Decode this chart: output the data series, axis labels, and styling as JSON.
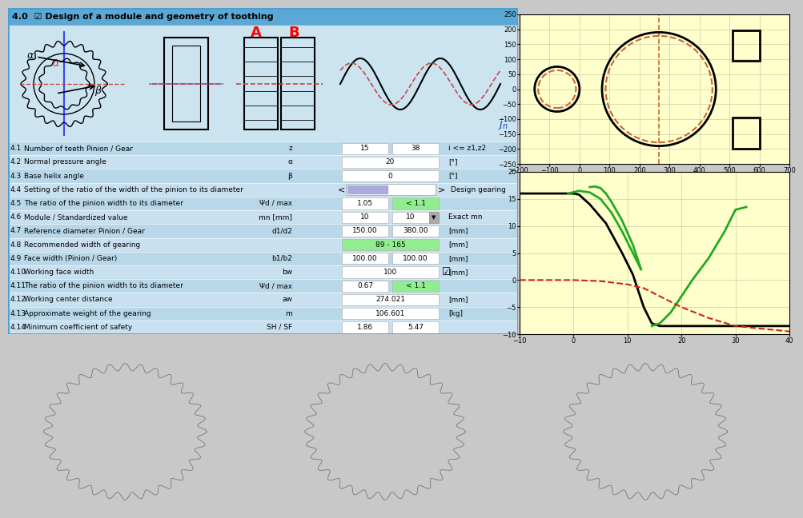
{
  "title": "4.0  ☑ Design of a module and geometry of toothing",
  "title_bg": "#5ba8d4",
  "panel_bg": "#aed4e8",
  "row_bg_even": "#b8d8ea",
  "row_bg_odd": "#c8e0f0",
  "diagram_bg": "#cce4f0",
  "plot_bg": "#ffffcc",
  "gear_bg": "#b8b8b8",
  "outer_bg": "#c8c8c8",
  "rows": [
    {
      "num": "4.1",
      "label": "Number of teeth Pinion / Gear",
      "sym": "z",
      "v1": "15",
      "v2": "38",
      "unit": "i <= z1,z2",
      "span": false,
      "v1_bg": "white",
      "v2_bg": "white"
    },
    {
      "num": "4.2",
      "label": "Normal pressure angle",
      "sym": "α",
      "v1": "20",
      "v2": null,
      "unit": "[°]",
      "span": true,
      "v1_bg": "white"
    },
    {
      "num": "4.3",
      "label": "Base helix angle",
      "sym": "β",
      "v1": "0",
      "v2": null,
      "unit": "[°]",
      "span": true,
      "v1_bg": "white"
    },
    {
      "num": "4.4",
      "label": "Setting of the ratio of the width of the pinion to its diameter",
      "sym": "",
      "v1": null,
      "v2": null,
      "unit": "Design gearing",
      "slider": true
    },
    {
      "num": "4.5",
      "label": "The ratio of the pinion width to its diameter",
      "sym": "Ψd / max",
      "v1": "1.05",
      "v2": "< 1.1",
      "unit": "",
      "span": false,
      "v1_bg": "white",
      "v2_bg": "#90ee90"
    },
    {
      "num": "4.6",
      "label": "Module / Standardized value",
      "sym": "mn [mm]",
      "v1": "10",
      "v2": "10",
      "unit": "Exact mn",
      "span": false,
      "v1_bg": "white",
      "v2_bg": "white",
      "dropdown": true
    },
    {
      "num": "4.7",
      "label": "Reference diameter Pinion / Gear",
      "sym": "d1/d2",
      "v1": "150.00",
      "v2": "380.00",
      "unit": "[mm]",
      "span": false,
      "v1_bg": "white",
      "v2_bg": "white"
    },
    {
      "num": "4.8",
      "label": "Recommended width of gearing",
      "sym": "",
      "v1": "89 - 165",
      "v2": null,
      "unit": "[mm]",
      "span": true,
      "v1_bg": "#90ee90"
    },
    {
      "num": "4.9",
      "label": "Face width (Pinion / Gear)",
      "sym": "b1/b2",
      "v1": "100.00",
      "v2": "100.00",
      "unit": "[mm]",
      "span": false,
      "v1_bg": "white",
      "v2_bg": "white"
    },
    {
      "num": "4.10",
      "label": "Working face width",
      "sym": "bw",
      "v1": "100",
      "v2": null,
      "unit": "[mm]",
      "span": true,
      "v1_bg": "white",
      "checkbox": true
    },
    {
      "num": "4.11",
      "label": "The ratio of the pinion width to its diameter",
      "sym": "Ψd / max",
      "v1": "0.67",
      "v2": "< 1.1",
      "unit": "",
      "span": false,
      "v1_bg": "white",
      "v2_bg": "#90ee90"
    },
    {
      "num": "4.12",
      "label": "Working center distance",
      "sym": "aw",
      "v1": "274.021",
      "v2": null,
      "unit": "[mm]",
      "span": true,
      "v1_bg": "white"
    },
    {
      "num": "4.13",
      "label": "Approximate weight of the gearing",
      "sym": "m",
      "v1": "106.601",
      "v2": null,
      "unit": "[kg]",
      "span": true,
      "v1_bg": "white"
    },
    {
      "num": "4.14",
      "label": "Minimum coefficient of safety",
      "sym": "SH / SF",
      "v1": "1.86",
      "v2": "5.47",
      "unit": "",
      "span": false,
      "v1_bg": "white",
      "v2_bg": "white"
    }
  ],
  "circ_xlim": [
    -200,
    700
  ],
  "circ_ylim": [
    -250,
    250
  ],
  "circ_xticks": [
    -200,
    -100,
    0,
    100,
    200,
    300,
    400,
    500,
    600,
    700
  ],
  "circ_yticks": [
    -250,
    -200,
    -150,
    -100,
    -50,
    0,
    50,
    100,
    150,
    200,
    250
  ],
  "line_xlim": [
    -10.0,
    40.0
  ],
  "line_ylim": [
    -10.0,
    20.0
  ],
  "line_xticks": [
    -10.0,
    0.0,
    10.0,
    20.0,
    30.0,
    40.0
  ],
  "line_yticks": [
    -10.0,
    -5.0,
    0.0,
    5.0,
    10.0,
    15.0,
    20.0
  ]
}
